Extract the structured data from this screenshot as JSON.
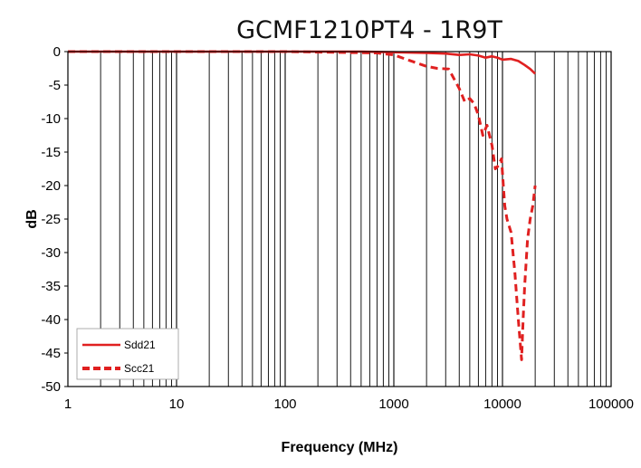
{
  "chart_data": {
    "type": "line",
    "title": "GCMF1210PT4 - 1R9T",
    "xlabel": "Frequency (MHz)",
    "ylabel": "dB",
    "x_scale": "log",
    "xlim": [
      1,
      100000
    ],
    "ylim": [
      -50,
      0
    ],
    "x_tick_labels": [
      "1",
      "10",
      "100",
      "1000",
      "10000",
      "100000"
    ],
    "y_tick_labels": [
      "0",
      "-5",
      "-10",
      "-15",
      "-20",
      "-25",
      "-30",
      "-35",
      "-40",
      "-45",
      "-50"
    ],
    "grid": {
      "x_major": true,
      "x_minor": true,
      "y": false
    },
    "legend": {
      "position": "bottom-left"
    },
    "series": [
      {
        "name": "Sdd21",
        "style": "solid",
        "color": "#e02020",
        "points": [
          [
            1,
            0
          ],
          [
            10,
            0
          ],
          [
            100,
            0
          ],
          [
            500,
            0
          ],
          [
            1000,
            -0.1
          ],
          [
            2000,
            -0.2
          ],
          [
            3000,
            -0.3
          ],
          [
            4000,
            -0.5
          ],
          [
            5000,
            -0.4
          ],
          [
            6000,
            -0.6
          ],
          [
            7000,
            -0.9
          ],
          [
            8000,
            -0.7
          ],
          [
            9000,
            -0.9
          ],
          [
            10000,
            -1.2
          ],
          [
            12000,
            -1.1
          ],
          [
            14000,
            -1.4
          ],
          [
            16000,
            -2.0
          ],
          [
            18000,
            -2.6
          ],
          [
            20000,
            -3.3
          ]
        ]
      },
      {
        "name": "Scc21",
        "style": "dashed",
        "color": "#e02020",
        "points": [
          [
            1,
            0
          ],
          [
            100,
            0
          ],
          [
            700,
            -0.2
          ],
          [
            1000,
            -0.5
          ],
          [
            1500,
            -1.5
          ],
          [
            2000,
            -2.2
          ],
          [
            2500,
            -2.5
          ],
          [
            3200,
            -2.6
          ],
          [
            4000,
            -5.5
          ],
          [
            4500,
            -7.5
          ],
          [
            5000,
            -7.0
          ],
          [
            5500,
            -7.8
          ],
          [
            6000,
            -9.5
          ],
          [
            6600,
            -12.5
          ],
          [
            7200,
            -11.0
          ],
          [
            8000,
            -14.0
          ],
          [
            8600,
            -17.5
          ],
          [
            9200,
            -17.0
          ],
          [
            9800,
            -16.0
          ],
          [
            10500,
            -23.0
          ],
          [
            11000,
            -25.0
          ],
          [
            12000,
            -27.0
          ],
          [
            13000,
            -33.0
          ],
          [
            14000,
            -40.0
          ],
          [
            15000,
            -46.0
          ],
          [
            15500,
            -40.0
          ],
          [
            16000,
            -35.0
          ],
          [
            17000,
            -28.0
          ],
          [
            18000,
            -25.0
          ],
          [
            19000,
            -23.0
          ],
          [
            20000,
            -20.0
          ]
        ]
      }
    ]
  }
}
